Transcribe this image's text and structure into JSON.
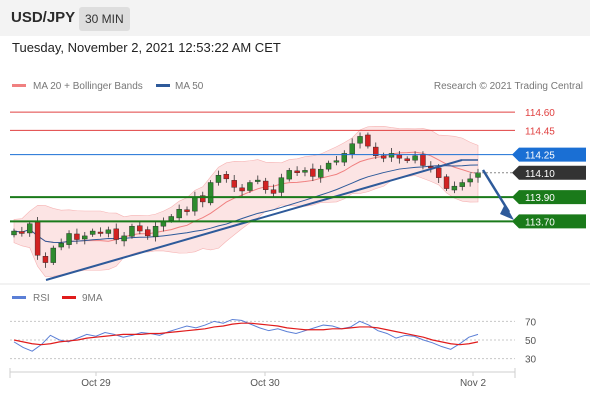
{
  "header": {
    "symbol": "USD/JPY",
    "timeframe": "30 MIN",
    "datetime": "Tuesday, November 2, 2021 12:53:22 AM CET"
  },
  "legend": {
    "ma20_label": "MA 20 + Bollinger Bands",
    "ma50_label": "MA 50",
    "credit": "Research © 2021 Trading Central",
    "ma20_color": "#f08080",
    "ma50_color": "#2e5a9a"
  },
  "rsi_legend": {
    "rsi_label": "RSI",
    "ma_label": "9MA",
    "rsi_color": "#5b7fd6",
    "ma_color": "#e01c1c"
  },
  "colors": {
    "up_candle": "#2e8b2e",
    "down_candle": "#d22222",
    "resistance": "#e04040",
    "support": "#1a7a1a",
    "pivot": "#1a6fd4",
    "last_price": "#333333",
    "trendline": "#2e5a9a"
  },
  "chart_data": [
    {
      "type": "candlestick",
      "title": "USD/JPY 30 MIN",
      "x_ticks": [
        "Oct 29",
        "Oct 30",
        "Nov 2"
      ],
      "price_levels": [
        {
          "label": "114.60",
          "value": 114.6,
          "kind": "resistance"
        },
        {
          "label": "114.45",
          "value": 114.45,
          "kind": "resistance"
        },
        {
          "label": "114.25",
          "value": 114.25,
          "kind": "pivot"
        },
        {
          "label": "114.10",
          "value": 114.1,
          "kind": "last"
        },
        {
          "label": "113.90",
          "value": 113.9,
          "kind": "support"
        },
        {
          "label": "113.70",
          "value": 113.7,
          "kind": "support"
        }
      ],
      "ylim": [
        113.2,
        114.7
      ],
      "close_path": [
        113.62,
        113.6,
        113.68,
        113.42,
        113.36,
        113.48,
        113.52,
        113.6,
        113.55,
        113.58,
        113.62,
        113.6,
        113.63,
        113.55,
        113.58,
        113.66,
        113.62,
        113.58,
        113.66,
        113.7,
        113.74,
        113.8,
        113.78,
        113.9,
        113.86,
        114.02,
        114.08,
        114.05,
        113.98,
        113.95,
        114.02,
        114.04,
        113.96,
        113.93,
        114.06,
        114.12,
        114.1,
        114.12,
        114.07,
        114.13,
        114.18,
        114.2,
        114.26,
        114.34,
        114.4,
        114.32,
        114.24,
        114.22,
        114.26,
        114.22,
        114.2,
        114.24,
        114.16,
        114.14,
        114.06,
        113.97,
        113.99,
        114.02,
        114.05,
        114.1
      ]
    },
    {
      "type": "line",
      "title": "RSI",
      "series": [
        {
          "name": "RSI",
          "values": [
            48,
            42,
            38,
            45,
            55,
            50,
            48,
            52,
            56,
            54,
            58,
            56,
            53,
            55,
            58,
            57,
            55,
            59,
            62,
            65,
            63,
            66,
            70,
            68,
            72,
            71,
            67,
            63,
            60,
            62,
            59,
            57,
            60,
            63,
            66,
            65,
            62,
            64,
            70,
            66,
            60,
            57,
            52,
            55,
            54,
            50,
            47,
            43,
            40,
            46,
            53,
            56
          ]
        },
        {
          "name": "9MA",
          "values": [
            50,
            48,
            46,
            45,
            46,
            48,
            49,
            50,
            52,
            53,
            54,
            55,
            56,
            56,
            56,
            57,
            57,
            58,
            59,
            60,
            61,
            62,
            64,
            65,
            67,
            68,
            68,
            67,
            66,
            65,
            63,
            62,
            61,
            61,
            61,
            62,
            62,
            63,
            64,
            64,
            63,
            61,
            59,
            57,
            55,
            53,
            50,
            48,
            46,
            45,
            46,
            48
          ]
        }
      ],
      "ylim": [
        20,
        80
      ],
      "y_ticks": [
        "70",
        "50",
        "30"
      ]
    }
  ]
}
